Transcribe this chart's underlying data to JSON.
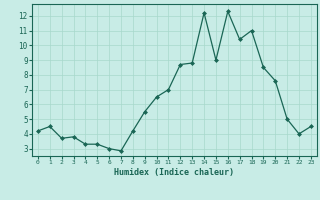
{
  "x": [
    0,
    1,
    2,
    3,
    4,
    5,
    6,
    7,
    8,
    9,
    10,
    11,
    12,
    13,
    14,
    15,
    16,
    17,
    18,
    19,
    20,
    21,
    22,
    23
  ],
  "y": [
    4.2,
    4.5,
    3.7,
    3.8,
    3.3,
    3.3,
    3.0,
    2.85,
    4.2,
    5.5,
    6.5,
    7.0,
    8.7,
    8.8,
    12.2,
    9.0,
    12.3,
    10.4,
    11.0,
    8.5,
    7.6,
    5.0,
    4.0,
    4.5
  ],
  "xlabel": "Humidex (Indice chaleur)",
  "xlim": [
    -0.5,
    23.5
  ],
  "ylim": [
    2.5,
    12.8
  ],
  "yticks": [
    3,
    4,
    5,
    6,
    7,
    8,
    9,
    10,
    11,
    12
  ],
  "xticks": [
    0,
    1,
    2,
    3,
    4,
    5,
    6,
    7,
    8,
    9,
    10,
    11,
    12,
    13,
    14,
    15,
    16,
    17,
    18,
    19,
    20,
    21,
    22,
    23
  ],
  "bg_color": "#c8ece6",
  "grid_color": "#a8d8cc",
  "line_color": "#1a6655",
  "marker_color": "#1a6655",
  "axes_color": "#1a6655",
  "tick_label_color": "#1a6655",
  "xlabel_color": "#1a6655",
  "figsize": [
    3.2,
    2.0
  ],
  "dpi": 100
}
